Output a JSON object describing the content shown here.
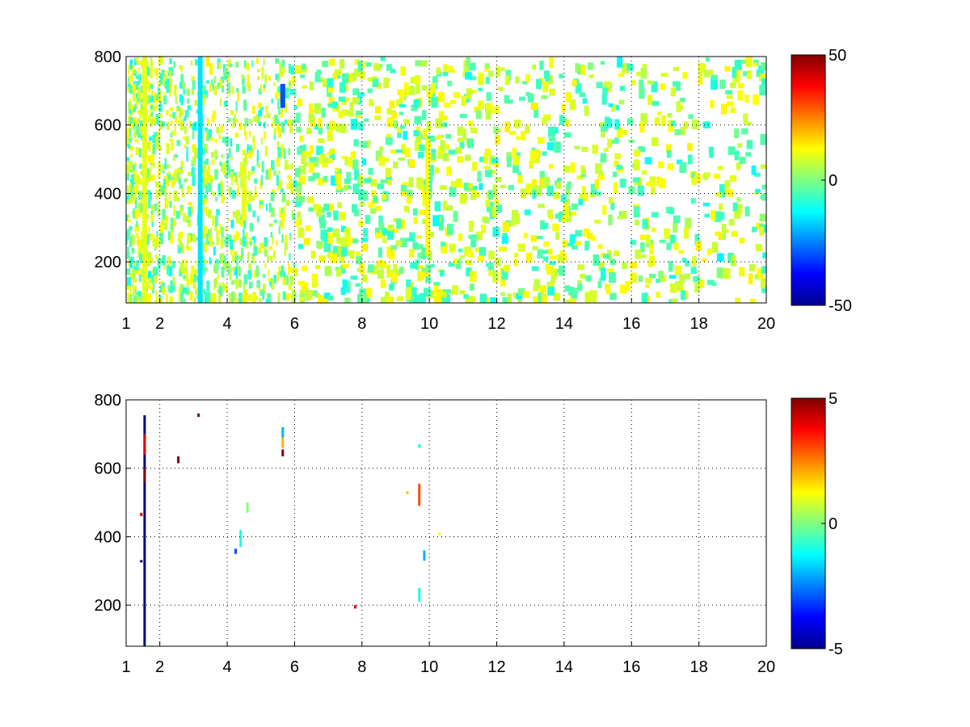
{
  "chart_data": [
    {
      "type": "heatmap",
      "title": "",
      "xlabel": "",
      "ylabel": "",
      "xlim": [
        1,
        20
      ],
      "ylim": [
        80,
        800
      ],
      "xticks": [
        1,
        2,
        4,
        6,
        8,
        10,
        12,
        14,
        16,
        18,
        20
      ],
      "yticks": [
        200,
        400,
        600,
        800
      ],
      "grid": true,
      "colormap": "jet",
      "colorbar": {
        "ticks": [
          50,
          0,
          -50
        ],
        "range": [
          -50,
          50
        ]
      },
      "cells_visible": "dense speckle of near-zero values (about -15 to 15), densest for x < 6, sparser columns toward x = 20",
      "features": [
        {
          "x": 5.65,
          "y_from": 650,
          "y_to": 720,
          "value": -30
        },
        {
          "x": 4.5,
          "y_from": 320,
          "y_to": 480,
          "value": 10
        },
        {
          "x": 9.95,
          "y_from": 220,
          "y_to": 560,
          "value": 12
        },
        {
          "x": 1.55,
          "y_from": 80,
          "y_to": 800,
          "value": 10
        },
        {
          "x": 3.2,
          "y_from": 80,
          "y_to": 800,
          "value": -15
        }
      ]
    },
    {
      "type": "heatmap",
      "title": "",
      "xlabel": "",
      "ylabel": "",
      "xlim": [
        1,
        20
      ],
      "ylim": [
        80,
        800
      ],
      "xticks": [
        1,
        2,
        4,
        6,
        8,
        10,
        12,
        14,
        16,
        18,
        20
      ],
      "yticks": [
        200,
        400,
        600,
        800
      ],
      "grid": true,
      "colormap": "jet",
      "colorbar": {
        "ticks": [
          5,
          0,
          -5
        ],
        "range": [
          -5,
          5
        ]
      },
      "features": [
        {
          "x": 1.55,
          "y_from": 80,
          "y_to": 755,
          "value": -5
        },
        {
          "x": 1.55,
          "y_from": 560,
          "y_to": 600,
          "value": 5
        },
        {
          "x": 1.55,
          "y_from": 640,
          "y_to": 700,
          "value": 4
        },
        {
          "x": 1.45,
          "y_from": 460,
          "y_to": 470,
          "value": 4
        },
        {
          "x": 1.45,
          "y_from": 325,
          "y_to": 332,
          "value": -5
        },
        {
          "x": 2.55,
          "y_from": 615,
          "y_to": 635,
          "value": 5
        },
        {
          "x": 3.15,
          "y_from": 750,
          "y_to": 760,
          "value": 5
        },
        {
          "x": 4.25,
          "y_from": 350,
          "y_to": 365,
          "value": -3
        },
        {
          "x": 4.4,
          "y_from": 370,
          "y_to": 420,
          "value": -1
        },
        {
          "x": 4.6,
          "y_from": 470,
          "y_to": 500,
          "value": 0
        },
        {
          "x": 5.65,
          "y_from": 690,
          "y_to": 720,
          "value": -2
        },
        {
          "x": 5.65,
          "y_from": 660,
          "y_to": 690,
          "value": 2
        },
        {
          "x": 5.65,
          "y_from": 635,
          "y_to": 655,
          "value": 5
        },
        {
          "x": 7.8,
          "y_from": 190,
          "y_to": 200,
          "value": 4
        },
        {
          "x": 9.7,
          "y_from": 490,
          "y_to": 555,
          "value": 3
        },
        {
          "x": 9.7,
          "y_from": 210,
          "y_to": 250,
          "value": -1
        },
        {
          "x": 9.85,
          "y_from": 330,
          "y_to": 360,
          "value": -2
        },
        {
          "x": 9.7,
          "y_from": 660,
          "y_to": 670,
          "value": -1
        },
        {
          "x": 9.35,
          "y_from": 525,
          "y_to": 532,
          "value": 2
        },
        {
          "x": 10.3,
          "y_from": 405,
          "y_to": 412,
          "value": 1
        }
      ]
    }
  ]
}
